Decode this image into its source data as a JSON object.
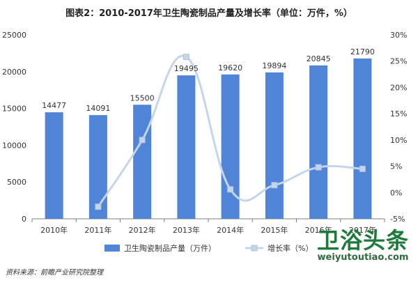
{
  "chart_data": {
    "type": "bar",
    "title": "图表2：2010-2017年卫生陶瓷制品产量及增长率（单位：万件，%）",
    "categories": [
      "2010年",
      "2011年",
      "2012年",
      "2013年",
      "2014年",
      "2015年",
      "2016年",
      "2017年"
    ],
    "series": [
      {
        "name": "卫生陶瓷制品产量（万件）",
        "type": "bar",
        "axis": "left",
        "color": "#4f84d6",
        "values": [
          14477,
          14091,
          15500,
          19495,
          19620,
          19894,
          20845,
          21790
        ]
      },
      {
        "name": "增长率（%）",
        "type": "line",
        "axis": "right",
        "color": "#c5d5ea",
        "values": [
          null,
          -2.7,
          10.0,
          25.8,
          0.6,
          1.4,
          4.8,
          4.5
        ]
      }
    ],
    "ylim_left": [
      0,
      25000
    ],
    "yticks_left": [
      "0",
      "5000",
      "10000",
      "15000",
      "20000",
      "25000"
    ],
    "ylim_right": [
      -5,
      30
    ],
    "yticks_right": [
      "-5%",
      "0%",
      "5%",
      "10%",
      "15%",
      "20%",
      "25%",
      "30%"
    ],
    "xlabel": "",
    "ylabel": "",
    "grid": false,
    "legend_position": "bottom"
  },
  "source": "资料来源：前瞻产业研究院整理",
  "watermark": {
    "text": "卫浴头条",
    "url": "weiyutoutiao.com",
    "color": "#1c7a3a"
  }
}
